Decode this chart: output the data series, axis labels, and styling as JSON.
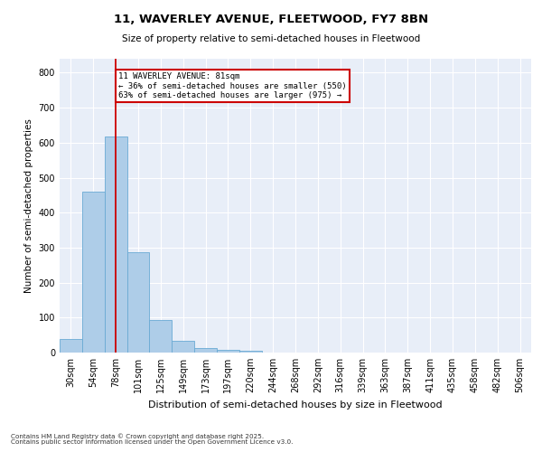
{
  "title_line1": "11, WAVERLEY AVENUE, FLEETWOOD, FY7 8BN",
  "title_line2": "Size of property relative to semi-detached houses in Fleetwood",
  "xlabel": "Distribution of semi-detached houses by size in Fleetwood",
  "ylabel": "Number of semi-detached properties",
  "bar_color": "#aecde8",
  "bar_edge_color": "#6aaad4",
  "categories": [
    "30sqm",
    "54sqm",
    "78sqm",
    "101sqm",
    "125sqm",
    "149sqm",
    "173sqm",
    "197sqm",
    "220sqm",
    "244sqm",
    "268sqm",
    "292sqm",
    "316sqm",
    "339sqm",
    "363sqm",
    "387sqm",
    "411sqm",
    "435sqm",
    "458sqm",
    "482sqm",
    "506sqm"
  ],
  "values": [
    38,
    460,
    618,
    288,
    93,
    33,
    14,
    9,
    5,
    0,
    0,
    0,
    0,
    0,
    0,
    0,
    0,
    0,
    0,
    0,
    0
  ],
  "ylim": [
    0,
    840
  ],
  "yticks": [
    0,
    100,
    200,
    300,
    400,
    500,
    600,
    700,
    800
  ],
  "vline_index": 2,
  "vline_color": "#cc0000",
  "annotation_text": "11 WAVERLEY AVENUE: 81sqm\n← 36% of semi-detached houses are smaller (550)\n63% of semi-detached houses are larger (975) →",
  "annotation_box_color": "#ffffff",
  "annotation_box_edge": "#cc0000",
  "background_color": "#e8eef8",
  "grid_color": "#ffffff",
  "footer_line1": "Contains HM Land Registry data © Crown copyright and database right 2025.",
  "footer_line2": "Contains public sector information licensed under the Open Government Licence v3.0."
}
